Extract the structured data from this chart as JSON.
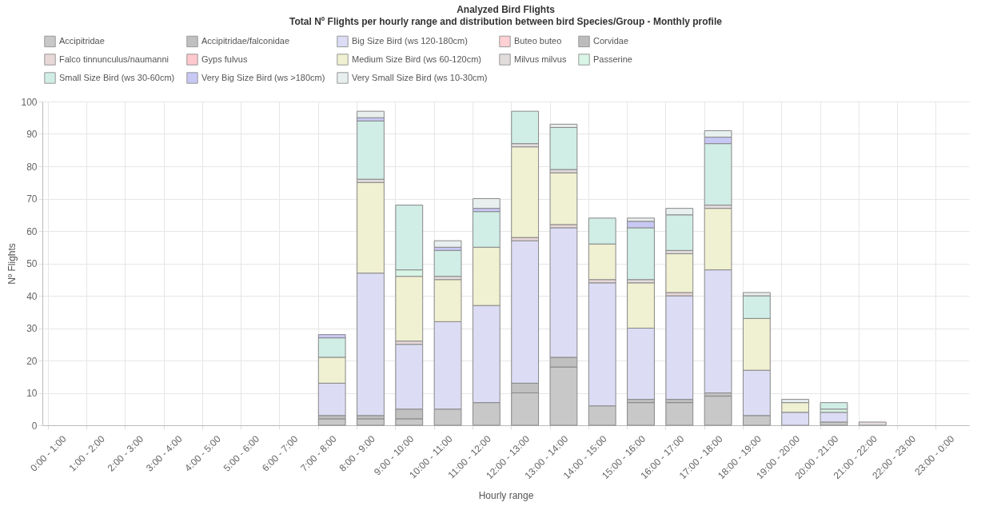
{
  "chart_data": {
    "type": "bar",
    "stacked": true,
    "title": "Analyzed Bird Flights",
    "subtitle": "Total Nº Flights per hourly range and distribution between bird Species/Group - Monthly profile",
    "xlabel": "Hourly range",
    "ylabel": "Nº Flights",
    "categories": [
      "0:00 - 1:00",
      "1:00 - 2:00",
      "2:00 - 3:00",
      "3:00 - 4:00",
      "4:00 - 5:00",
      "5:00 - 6:00",
      "6:00 - 7:00",
      "7:00 - 8:00",
      "8:00 - 9:00",
      "9:00 - 10:00",
      "10:00 - 11:00",
      "11:00 - 12:00",
      "12:00 - 13:00",
      "13:00 - 14:00",
      "14:00 - 15:00",
      "15:00 - 16:00",
      "16:00 - 17:00",
      "17:00 - 18:00",
      "18:00 - 19:00",
      "19:00 - 20:00",
      "20:00 - 21:00",
      "21:00 - 22:00",
      "22:00 - 23:00",
      "23:00 - 0:00"
    ],
    "ylim": [
      0,
      100
    ],
    "yticks": [
      0,
      10,
      20,
      30,
      40,
      50,
      60,
      70,
      80,
      90,
      100
    ],
    "grid": true,
    "legend": "top",
    "series": [
      {
        "name": "Accipitridae",
        "color": "#c8c8c8",
        "values": [
          0,
          0,
          0,
          0,
          0,
          0,
          0,
          2,
          2,
          2,
          5,
          7,
          10,
          18,
          6,
          7,
          7,
          9,
          3,
          0,
          1,
          0,
          0,
          0
        ]
      },
      {
        "name": "Accipitridae/falconidae",
        "color": "#c0c0c0",
        "values": [
          0,
          0,
          0,
          0,
          0,
          0,
          0,
          1,
          1,
          3,
          0,
          0,
          3,
          3,
          0,
          1,
          1,
          1,
          0,
          0,
          0,
          0,
          0,
          0
        ]
      },
      {
        "name": "Big Size Bird (ws 120-180cm)",
        "color": "#dcdcf5",
        "values": [
          0,
          0,
          0,
          0,
          0,
          0,
          0,
          10,
          44,
          20,
          27,
          30,
          44,
          40,
          38,
          22,
          32,
          38,
          14,
          4,
          3,
          0,
          0,
          0
        ]
      },
      {
        "name": "Buteo buteo",
        "color": "#ffd0d4",
        "values": [
          0,
          0,
          0,
          0,
          0,
          0,
          0,
          0,
          0,
          0,
          0,
          0,
          0,
          0,
          0,
          0,
          0,
          0,
          0,
          0,
          0,
          0,
          0,
          0
        ]
      },
      {
        "name": "Corvidae",
        "color": "#bcbcbc",
        "values": [
          0,
          0,
          0,
          0,
          0,
          0,
          0,
          0,
          0,
          0,
          0,
          0,
          0,
          0,
          0,
          0,
          0,
          0,
          0,
          0,
          0,
          0,
          0,
          0
        ]
      },
      {
        "name": "Falco tinnunculus/naumanni",
        "color": "#e8d8d8",
        "values": [
          0,
          0,
          0,
          0,
          0,
          0,
          0,
          0,
          0,
          1,
          0,
          0,
          1,
          1,
          1,
          0,
          1,
          0,
          0,
          0,
          0,
          0,
          0,
          0
        ]
      },
      {
        "name": "Gyps fulvus",
        "color": "#ffc8cc",
        "values": [
          0,
          0,
          0,
          0,
          0,
          0,
          0,
          0,
          0,
          0,
          0,
          0,
          0,
          0,
          0,
          0,
          0,
          0,
          0,
          0,
          0,
          0,
          0,
          0
        ]
      },
      {
        "name": "Medium Size Bird (ws 60-120cm)",
        "color": "#f0f0d2",
        "values": [
          0,
          0,
          0,
          0,
          0,
          0,
          0,
          8,
          28,
          20,
          13,
          18,
          28,
          16,
          11,
          14,
          12,
          19,
          16,
          3,
          0,
          0,
          0,
          0
        ]
      },
      {
        "name": "Milvus milvus",
        "color": "#e2dcdc",
        "values": [
          0,
          0,
          0,
          0,
          0,
          0,
          0,
          0,
          1,
          0,
          1,
          0,
          1,
          1,
          0,
          1,
          1,
          1,
          0,
          0,
          0,
          1,
          0,
          0
        ]
      },
      {
        "name": "Passerine",
        "color": "#d8f5e6",
        "values": [
          0,
          0,
          0,
          0,
          0,
          0,
          0,
          0,
          0,
          2,
          0,
          0,
          0,
          0,
          0,
          0,
          0,
          0,
          0,
          0,
          1,
          0,
          0,
          0
        ]
      },
      {
        "name": "Small Size Bird (ws 30-60cm)",
        "color": "#d0ede6",
        "values": [
          0,
          0,
          0,
          0,
          0,
          0,
          0,
          6,
          18,
          20,
          8,
          11,
          10,
          13,
          8,
          16,
          11,
          19,
          7,
          0,
          2,
          0,
          0,
          0
        ]
      },
      {
        "name": "Very Big Size Bird (ws >180cm)",
        "color": "#c8c8f5",
        "values": [
          0,
          0,
          0,
          0,
          0,
          0,
          0,
          1,
          1,
          0,
          1,
          1,
          0,
          0,
          0,
          2,
          0,
          2,
          0,
          0,
          0,
          0,
          0,
          0
        ]
      },
      {
        "name": "Very Small Size Bird (ws 10-30cm)",
        "color": "#e8efef",
        "values": [
          0,
          0,
          0,
          0,
          0,
          0,
          0,
          0,
          2,
          0,
          2,
          3,
          0,
          1,
          0,
          1,
          2,
          2,
          1,
          1,
          0,
          0,
          0,
          0
        ]
      }
    ]
  }
}
